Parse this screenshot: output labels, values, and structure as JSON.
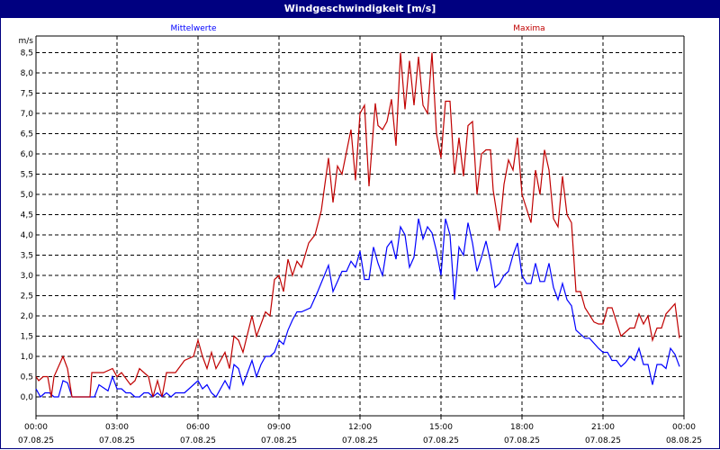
{
  "window": {
    "title": "Windgeschwindigkeit [m/s]"
  },
  "chart_data": {
    "type": "line",
    "title": "Windgeschwindigkeit [m/s]",
    "ylabel": "m/s",
    "ylim": [
      0,
      8.5
    ],
    "yticks": [
      "0,0",
      "0,5",
      "1,0",
      "1,5",
      "2,0",
      "2,5",
      "3,0",
      "3,5",
      "4,0",
      "4,5",
      "5,0",
      "5,5",
      "6,0",
      "6,5",
      "7,0",
      "7,5",
      "8,0",
      "8,5"
    ],
    "xlim_minutes": [
      0,
      1440
    ],
    "xticks": [
      {
        "time": "00:00",
        "date": "07.08.25"
      },
      {
        "time": "03:00",
        "date": "07.08.25"
      },
      {
        "time": "06:00",
        "date": "07.08.25"
      },
      {
        "time": "09:00",
        "date": "07.08.25"
      },
      {
        "time": "12:00",
        "date": "07.08.25"
      },
      {
        "time": "15:00",
        "date": "07.08.25"
      },
      {
        "time": "18:00",
        "date": "07.08.25"
      },
      {
        "time": "21:00",
        "date": "07.08.25"
      },
      {
        "time": "00:00",
        "date": "08.08.25"
      }
    ],
    "grid": true,
    "series": [
      {
        "name": "Mittelwerte",
        "color": "#0000ff",
        "legend_position": "top-left",
        "points": [
          [
            0,
            0.2
          ],
          [
            10,
            0.0
          ],
          [
            20,
            0.1
          ],
          [
            30,
            0.1
          ],
          [
            40,
            0.0
          ],
          [
            50,
            0.0
          ],
          [
            60,
            0.4
          ],
          [
            70,
            0.35
          ],
          [
            80,
            0.0
          ],
          [
            120,
            0.0
          ],
          [
            130,
            0.0
          ],
          [
            140,
            0.3
          ],
          [
            160,
            0.15
          ],
          [
            170,
            0.5
          ],
          [
            180,
            0.2
          ],
          [
            190,
            0.2
          ],
          [
            200,
            0.1
          ],
          [
            210,
            0.1
          ],
          [
            220,
            0.0
          ],
          [
            230,
            0.0
          ],
          [
            240,
            0.1
          ],
          [
            250,
            0.1
          ],
          [
            260,
            0.0
          ],
          [
            270,
            0.1
          ],
          [
            280,
            0.0
          ],
          [
            290,
            0.1
          ],
          [
            300,
            0.0
          ],
          [
            310,
            0.1
          ],
          [
            320,
            0.1
          ],
          [
            330,
            0.1
          ],
          [
            340,
            0.2
          ],
          [
            350,
            0.3
          ],
          [
            360,
            0.4
          ],
          [
            370,
            0.2
          ],
          [
            380,
            0.3
          ],
          [
            390,
            0.1
          ],
          [
            400,
            0.0
          ],
          [
            420,
            0.4
          ],
          [
            430,
            0.2
          ],
          [
            440,
            0.8
          ],
          [
            450,
            0.7
          ],
          [
            460,
            0.3
          ],
          [
            470,
            0.6
          ],
          [
            480,
            0.9
          ],
          [
            490,
            0.5
          ],
          [
            500,
            0.8
          ],
          [
            510,
            1.0
          ],
          [
            520,
            1.0
          ],
          [
            530,
            1.1
          ],
          [
            540,
            1.4
          ],
          [
            550,
            1.3
          ],
          [
            560,
            1.65
          ],
          [
            570,
            1.9
          ],
          [
            580,
            2.1
          ],
          [
            590,
            2.1
          ],
          [
            610,
            2.2
          ],
          [
            626,
            2.6
          ],
          [
            650,
            3.25
          ],
          [
            660,
            2.6
          ],
          [
            680,
            3.1
          ],
          [
            690,
            3.1
          ],
          [
            700,
            3.35
          ],
          [
            710,
            3.2
          ],
          [
            720,
            3.6
          ],
          [
            730,
            2.9
          ],
          [
            740,
            2.9
          ],
          [
            750,
            3.7
          ],
          [
            760,
            3.3
          ],
          [
            770,
            3.0
          ],
          [
            780,
            3.7
          ],
          [
            790,
            3.85
          ],
          [
            800,
            3.4
          ],
          [
            810,
            4.2
          ],
          [
            820,
            4.0
          ],
          [
            830,
            3.2
          ],
          [
            840,
            3.45
          ],
          [
            850,
            4.4
          ],
          [
            860,
            3.9
          ],
          [
            870,
            4.2
          ],
          [
            880,
            4.05
          ],
          [
            890,
            3.6
          ],
          [
            900,
            3.0
          ],
          [
            910,
            4.4
          ],
          [
            920,
            4.0
          ],
          [
            930,
            2.4
          ],
          [
            940,
            3.7
          ],
          [
            950,
            3.5
          ],
          [
            960,
            4.3
          ],
          [
            970,
            3.8
          ],
          [
            980,
            3.1
          ],
          [
            990,
            3.45
          ],
          [
            1000,
            3.85
          ],
          [
            1010,
            3.35
          ],
          [
            1020,
            2.7
          ],
          [
            1030,
            2.8
          ],
          [
            1040,
            3.0
          ],
          [
            1050,
            3.1
          ],
          [
            1060,
            3.5
          ],
          [
            1070,
            3.8
          ],
          [
            1080,
            3.0
          ],
          [
            1090,
            2.8
          ],
          [
            1100,
            2.8
          ],
          [
            1110,
            3.3
          ],
          [
            1120,
            2.85
          ],
          [
            1130,
            2.85
          ],
          [
            1140,
            3.3
          ],
          [
            1150,
            2.7
          ],
          [
            1160,
            2.4
          ],
          [
            1170,
            2.8
          ],
          [
            1180,
            2.4
          ],
          [
            1190,
            2.25
          ],
          [
            1200,
            1.65
          ],
          [
            1220,
            1.45
          ],
          [
            1230,
            1.45
          ],
          [
            1250,
            1.2
          ],
          [
            1260,
            1.1
          ],
          [
            1270,
            1.1
          ],
          [
            1280,
            0.9
          ],
          [
            1290,
            0.9
          ],
          [
            1300,
            0.75
          ],
          [
            1310,
            0.85
          ],
          [
            1320,
            1.0
          ],
          [
            1330,
            0.9
          ],
          [
            1340,
            1.2
          ],
          [
            1350,
            0.8
          ],
          [
            1360,
            0.8
          ],
          [
            1370,
            0.3
          ],
          [
            1380,
            0.8
          ],
          [
            1390,
            0.8
          ],
          [
            1400,
            0.7
          ],
          [
            1410,
            1.2
          ],
          [
            1420,
            1.05
          ],
          [
            1430,
            0.75
          ]
        ]
      },
      {
        "name": "Maxima",
        "color": "#c00000",
        "legend_position": "top-right",
        "points": [
          [
            0,
            0.5
          ],
          [
            6,
            0.4
          ],
          [
            16,
            0.5
          ],
          [
            26,
            0.5
          ],
          [
            34,
            0.0
          ],
          [
            40,
            0.5
          ],
          [
            60,
            1.0
          ],
          [
            70,
            0.7
          ],
          [
            80,
            0.0
          ],
          [
            120,
            0.0
          ],
          [
            124,
            0.6
          ],
          [
            150,
            0.6
          ],
          [
            170,
            0.7
          ],
          [
            180,
            0.5
          ],
          [
            190,
            0.6
          ],
          [
            210,
            0.3
          ],
          [
            220,
            0.4
          ],
          [
            230,
            0.7
          ],
          [
            250,
            0.5
          ],
          [
            260,
            0.0
          ],
          [
            270,
            0.4
          ],
          [
            280,
            0.0
          ],
          [
            290,
            0.6
          ],
          [
            310,
            0.6
          ],
          [
            330,
            0.9
          ],
          [
            350,
            1.0
          ],
          [
            360,
            1.4
          ],
          [
            370,
            1.0
          ],
          [
            380,
            0.7
          ],
          [
            390,
            1.1
          ],
          [
            400,
            0.7
          ],
          [
            420,
            1.1
          ],
          [
            430,
            0.7
          ],
          [
            440,
            1.5
          ],
          [
            450,
            1.4
          ],
          [
            460,
            1.1
          ],
          [
            480,
            2.0
          ],
          [
            490,
            1.5
          ],
          [
            510,
            2.1
          ],
          [
            520,
            2.0
          ],
          [
            530,
            2.9
          ],
          [
            540,
            3.0
          ],
          [
            550,
            2.6
          ],
          [
            560,
            3.4
          ],
          [
            570,
            3.0
          ],
          [
            580,
            3.35
          ],
          [
            590,
            3.2
          ],
          [
            606,
            3.8
          ],
          [
            620,
            4.0
          ],
          [
            634,
            4.6
          ],
          [
            650,
            5.9
          ],
          [
            660,
            4.8
          ],
          [
            670,
            5.7
          ],
          [
            680,
            5.5
          ],
          [
            700,
            6.6
          ],
          [
            710,
            5.35
          ],
          [
            720,
            7.0
          ],
          [
            730,
            7.2
          ],
          [
            740,
            5.2
          ],
          [
            754,
            7.25
          ],
          [
            760,
            6.7
          ],
          [
            770,
            6.6
          ],
          [
            780,
            6.8
          ],
          [
            790,
            7.35
          ],
          [
            800,
            6.2
          ],
          [
            810,
            8.5
          ],
          [
            820,
            7.1
          ],
          [
            830,
            8.3
          ],
          [
            840,
            7.2
          ],
          [
            850,
            8.4
          ],
          [
            860,
            7.2
          ],
          [
            870,
            7.0
          ],
          [
            880,
            8.5
          ],
          [
            890,
            6.5
          ],
          [
            900,
            5.9
          ],
          [
            910,
            7.3
          ],
          [
            920,
            7.3
          ],
          [
            930,
            5.5
          ],
          [
            940,
            6.4
          ],
          [
            950,
            5.45
          ],
          [
            960,
            6.7
          ],
          [
            970,
            6.8
          ],
          [
            980,
            5.0
          ],
          [
            990,
            6.0
          ],
          [
            1000,
            6.1
          ],
          [
            1010,
            6.1
          ],
          [
            1016,
            5.1
          ],
          [
            1030,
            4.1
          ],
          [
            1040,
            5.25
          ],
          [
            1050,
            5.85
          ],
          [
            1060,
            5.6
          ],
          [
            1070,
            6.4
          ],
          [
            1080,
            5.0
          ],
          [
            1100,
            4.3
          ],
          [
            1110,
            5.6
          ],
          [
            1120,
            5.0
          ],
          [
            1130,
            6.1
          ],
          [
            1140,
            5.6
          ],
          [
            1150,
            4.4
          ],
          [
            1160,
            4.2
          ],
          [
            1170,
            5.45
          ],
          [
            1180,
            4.5
          ],
          [
            1190,
            4.3
          ],
          [
            1200,
            2.6
          ],
          [
            1210,
            2.6
          ],
          [
            1220,
            2.2
          ],
          [
            1240,
            1.85
          ],
          [
            1250,
            1.8
          ],
          [
            1260,
            1.8
          ],
          [
            1270,
            2.2
          ],
          [
            1280,
            2.2
          ],
          [
            1300,
            1.5
          ],
          [
            1320,
            1.7
          ],
          [
            1330,
            1.7
          ],
          [
            1340,
            2.05
          ],
          [
            1350,
            1.8
          ],
          [
            1360,
            2.0
          ],
          [
            1370,
            1.4
          ],
          [
            1380,
            1.7
          ],
          [
            1390,
            1.7
          ],
          [
            1400,
            2.05
          ],
          [
            1420,
            2.3
          ],
          [
            1430,
            1.45
          ]
        ]
      }
    ]
  }
}
